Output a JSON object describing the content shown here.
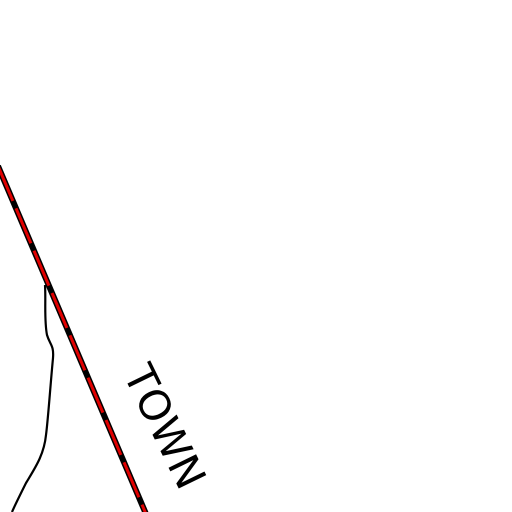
{
  "map_labels": {
    "area": "TOWN"
  }
}
